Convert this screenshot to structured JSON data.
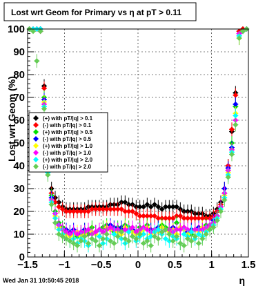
{
  "canvas": {
    "title": "Lost wrt Geom for Primary vs   η at pT > 0.11",
    "timestamp": "Wed Jan 31 10:50:45 2018"
  },
  "chart_data": {
    "type": "scatter",
    "title": "Lost wrt Geom for Primary vs   η at pT > 0.11",
    "xlabel": "η",
    "ylabel": "Lost wrt Geom (%)",
    "xlim": [
      -1.5,
      1.5
    ],
    "ylim": [
      0,
      100
    ],
    "xticks": [
      "−1.5",
      "−1",
      "−0.5",
      "0",
      "0.5",
      "1",
      "1.5"
    ],
    "yticks": [
      "0",
      "10",
      "20",
      "30",
      "40",
      "50",
      "60",
      "70",
      "80",
      "90",
      "100"
    ],
    "grid": true,
    "legend_position": "middle-left",
    "x": [
      -1.475,
      -1.425,
      -1.375,
      -1.325,
      -1.275,
      -1.225,
      -1.175,
      -1.125,
      -1.075,
      -1.025,
      -0.975,
      -0.925,
      -0.875,
      -0.825,
      -0.775,
      -0.725,
      -0.675,
      -0.625,
      -0.575,
      -0.525,
      -0.475,
      -0.425,
      -0.375,
      -0.325,
      -0.275,
      -0.225,
      -0.175,
      -0.125,
      -0.075,
      -0.025,
      0.025,
      0.075,
      0.125,
      0.175,
      0.225,
      0.275,
      0.325,
      0.375,
      0.425,
      0.475,
      0.525,
      0.575,
      0.625,
      0.675,
      0.725,
      0.775,
      0.825,
      0.875,
      0.925,
      0.975,
      1.025,
      1.075,
      1.125,
      1.175,
      1.225,
      1.275,
      1.325,
      1.375,
      1.425,
      1.475
    ],
    "series": [
      {
        "name": "(+) with pT/|q| > 0.1",
        "color": "#000000",
        "values": [
          100,
          100,
          100,
          100,
          75,
          45,
          30,
          26,
          24,
          22,
          21,
          21,
          21,
          21,
          21,
          21,
          22,
          22,
          22,
          22,
          22,
          22,
          23,
          23,
          23,
          24,
          24,
          23,
          23,
          22,
          22,
          22,
          23,
          22,
          23,
          22,
          21,
          22,
          22,
          22,
          22,
          21,
          20,
          20,
          20,
          19,
          19,
          19,
          18,
          18,
          19,
          21,
          24,
          30,
          40,
          55,
          72,
          99,
          100,
          100
        ]
      },
      {
        "name": "(-) with pT/|q| > 0.1",
        "color": "#ff0000",
        "values": [
          100,
          100,
          100,
          100,
          74,
          43,
          28,
          24,
          22,
          21,
          20,
          20,
          20,
          20,
          20,
          20,
          20,
          21,
          21,
          21,
          21,
          21,
          21,
          21,
          21,
          21,
          20,
          20,
          20,
          19,
          18,
          18,
          18,
          18,
          18,
          17,
          17,
          17,
          17,
          17,
          18,
          18,
          17,
          17,
          17,
          17,
          17,
          17,
          17,
          17,
          18,
          20,
          23,
          28,
          40,
          56,
          71,
          99,
          100,
          100
        ]
      },
      {
        "name": "(+) with pT/|q| > 0.5",
        "color": "#00e000",
        "values": [
          100,
          100,
          100,
          100,
          70,
          40,
          27,
          20,
          15,
          13,
          11,
          10,
          10,
          9,
          11,
          12,
          10,
          13,
          11,
          12,
          13,
          14,
          12,
          11,
          13,
          12,
          14,
          13,
          12,
          11,
          13,
          12,
          14,
          12,
          11,
          13,
          14,
          13,
          12,
          12,
          15,
          12,
          13,
          11,
          10,
          12,
          13,
          12,
          14,
          13,
          15,
          18,
          22,
          28,
          38,
          50,
          66,
          97,
          99,
          100
        ]
      },
      {
        "name": "(-) with pT/|q| > 0.5",
        "color": "#0000ff",
        "values": [
          100,
          100,
          100,
          100,
          69,
          39,
          26,
          19,
          14,
          12,
          12,
          11,
          12,
          11,
          10,
          12,
          12,
          11,
          11,
          12,
          11,
          12,
          14,
          13,
          12,
          13,
          12,
          11,
          12,
          11,
          12,
          12,
          13,
          12,
          12,
          13,
          11,
          12,
          12,
          13,
          12,
          13,
          12,
          11,
          12,
          12,
          13,
          12,
          13,
          14,
          16,
          18,
          22,
          30,
          39,
          48,
          67,
          98,
          99,
          100
        ]
      },
      {
        "name": "(+) with pT/|q| > 1.0",
        "color": "#ffff00",
        "values": [
          100,
          100,
          100,
          99,
          68,
          38,
          25,
          18,
          13,
          12,
          10,
          9,
          10,
          11,
          9,
          10,
          12,
          11,
          10,
          9,
          11,
          13,
          12,
          12,
          11,
          10,
          13,
          12,
          11,
          10,
          11,
          12,
          13,
          10,
          12,
          11,
          13,
          12,
          11,
          12,
          10,
          13,
          12,
          10,
          11,
          12,
          11,
          13,
          12,
          13,
          14,
          17,
          21,
          27,
          37,
          47,
          63,
          96,
          99,
          100
        ]
      },
      {
        "name": "(-) with pT/|q| > 1.0",
        "color": "#ff00ff",
        "values": [
          100,
          100,
          100,
          99,
          67,
          38,
          25,
          19,
          14,
          12,
          11,
          10,
          11,
          10,
          11,
          11,
          12,
          10,
          11,
          12,
          11,
          12,
          13,
          12,
          12,
          11,
          12,
          12,
          13,
          11,
          12,
          13,
          12,
          11,
          12,
          12,
          11,
          12,
          12,
          11,
          12,
          12,
          13,
          12,
          11,
          12,
          12,
          12,
          13,
          14,
          15,
          18,
          22,
          28,
          38,
          47,
          60,
          98,
          99,
          100
        ]
      },
      {
        "name": "(+) with pT/|q| > 2.0",
        "color": "#00ffff",
        "values": [
          100,
          100,
          100,
          100,
          66,
          37,
          24,
          17,
          12,
          10,
          8,
          7,
          8,
          6,
          8,
          7,
          5,
          8,
          7,
          9,
          6,
          8,
          7,
          10,
          9,
          8,
          6,
          11,
          9,
          7,
          9,
          10,
          8,
          9,
          11,
          12,
          10,
          8,
          7,
          9,
          8,
          6,
          10,
          9,
          11,
          8,
          10,
          9,
          11,
          12,
          14,
          17,
          21,
          26,
          36,
          46,
          62,
          97,
          99,
          100
        ]
      },
      {
        "name": "(-) with pT/|q| > 2.0",
        "color": "#66cc55",
        "values": [
          100,
          99,
          86,
          99,
          65,
          36,
          23,
          15,
          10,
          9,
          8,
          7,
          6,
          5,
          7,
          9,
          6,
          8,
          7,
          5,
          8,
          10,
          7,
          6,
          9,
          11,
          8,
          7,
          9,
          8,
          10,
          6,
          7,
          5,
          9,
          8,
          11,
          12,
          10,
          7,
          9,
          6,
          5,
          8,
          7,
          9,
          6,
          8,
          10,
          12,
          13,
          16,
          20,
          25,
          35,
          45,
          58,
          96,
          99,
          100
        ]
      }
    ]
  }
}
